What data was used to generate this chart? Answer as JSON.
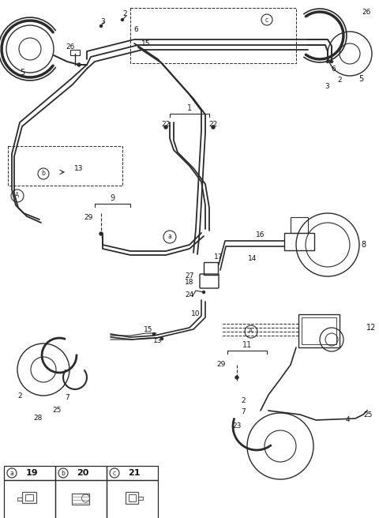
{
  "bg_color": "#ffffff",
  "line_color": "#2a2a2a",
  "figsize": [
    4.8,
    6.56
  ],
  "dpi": 100,
  "table_cells": [
    {
      "label": "a",
      "num": "19"
    },
    {
      "label": "b",
      "num": "20"
    },
    {
      "label": "c",
      "num": "21"
    }
  ]
}
